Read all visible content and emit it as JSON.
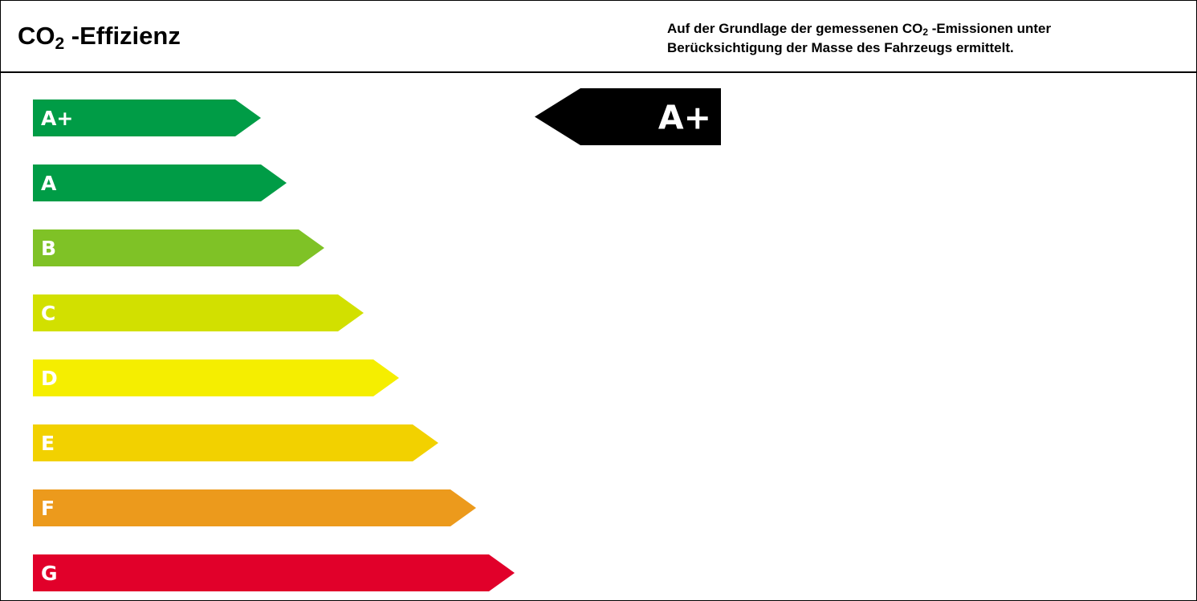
{
  "header": {
    "title_prefix": "CO",
    "title_sub": "2",
    "title_suffix": " -Effizienz",
    "note_line1_prefix": "Auf der Grundlage der gemessenen CO",
    "note_line1_sub": "2",
    "note_line1_suffix": " -Emissionen unter",
    "note_line2": "Berücksichtigung der Masse des Fahrzeugs ermittelt."
  },
  "classes": [
    {
      "label": "A+",
      "color": "#009c46"
    },
    {
      "label": "A",
      "color": "#009c46"
    },
    {
      "label": "B",
      "color": "#7fc226"
    },
    {
      "label": "C",
      "color": "#d2e000"
    },
    {
      "label": "D",
      "color": "#f5ee00"
    },
    {
      "label": "E",
      "color": "#f2d100"
    },
    {
      "label": "F",
      "color": "#ec9a1c"
    },
    {
      "label": "G",
      "color": "#e1002a"
    }
  ],
  "rating": {
    "label": "A+",
    "color": "#000000"
  }
}
